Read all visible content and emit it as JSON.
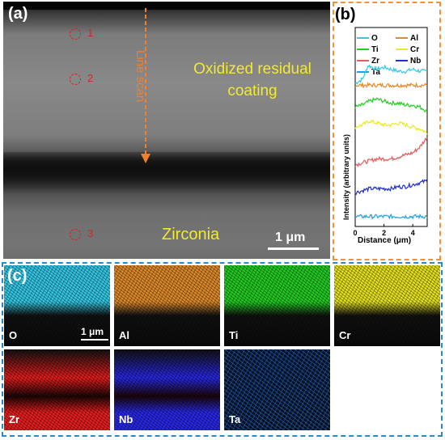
{
  "panel_a": {
    "label": "(a)",
    "line_scan_label": "Line scan",
    "coating_label": "Oxidized residual coating",
    "zirconia_label": "Zirconia",
    "scale_bar": "1 μm",
    "points": [
      "1",
      "2",
      "3"
    ]
  },
  "panel_b": {
    "label": "(b)",
    "legend": [
      {
        "name": "O",
        "color": "#33c8e6"
      },
      {
        "name": "Al",
        "color": "#e08a2a"
      },
      {
        "name": "Ti",
        "color": "#22cc22"
      },
      {
        "name": "Cr",
        "color": "#eaea1e"
      },
      {
        "name": "Zr",
        "color": "#e85a5a"
      },
      {
        "name": "Nb",
        "color": "#1e2ed0"
      },
      {
        "name": "Ta",
        "color": "#1ea0e0"
      }
    ]
  },
  "chart_data": {
    "type": "line",
    "xlabel": "Distance (μm)",
    "ylabel": "Intensity (arbitrary units)",
    "xlim": [
      0,
      5
    ],
    "xticks": [
      "0",
      "2",
      "4"
    ],
    "series": [
      {
        "name": "O",
        "x": [
          0,
          0.5,
          0.9,
          1.5,
          2.0,
          2.5,
          3.0,
          3.5,
          4.0,
          4.5,
          5.0
        ],
        "y": [
          0.72,
          0.74,
          0.81,
          0.79,
          0.8,
          0.79,
          0.78,
          0.78,
          0.79,
          0.78,
          0.78
        ]
      },
      {
        "name": "Al",
        "x": [
          0,
          0.5,
          1.0,
          1.5,
          2.0,
          2.5,
          3.0,
          3.5,
          4.0,
          4.5,
          5.0
        ],
        "y": [
          0.71,
          0.71,
          0.71,
          0.71,
          0.71,
          0.71,
          0.71,
          0.71,
          0.71,
          0.71,
          0.71
        ]
      },
      {
        "name": "Ti",
        "x": [
          0,
          0.5,
          1.0,
          1.5,
          2.0,
          2.5,
          3.0,
          3.5,
          4.0,
          4.5,
          5.0
        ],
        "y": [
          0.6,
          0.61,
          0.63,
          0.64,
          0.63,
          0.62,
          0.62,
          0.61,
          0.61,
          0.6,
          0.58
        ]
      },
      {
        "name": "Cr",
        "x": [
          0,
          0.5,
          1.0,
          1.5,
          2.0,
          2.5,
          3.0,
          3.5,
          4.0,
          4.5,
          5.0
        ],
        "y": [
          0.5,
          0.51,
          0.53,
          0.52,
          0.51,
          0.51,
          0.52,
          0.51,
          0.5,
          0.49,
          0.47
        ]
      },
      {
        "name": "Zr",
        "x": [
          0,
          0.5,
          1.0,
          1.5,
          2.0,
          2.5,
          3.0,
          3.5,
          4.0,
          4.5,
          5.0
        ],
        "y": [
          0.31,
          0.32,
          0.33,
          0.34,
          0.34,
          0.34,
          0.35,
          0.36,
          0.37,
          0.4,
          0.45
        ]
      },
      {
        "name": "Nb",
        "x": [
          0,
          0.5,
          1.0,
          1.5,
          2.0,
          2.5,
          3.0,
          3.5,
          4.0,
          4.5,
          5.0
        ],
        "y": [
          0.17,
          0.18,
          0.19,
          0.19,
          0.19,
          0.19,
          0.2,
          0.2,
          0.21,
          0.22,
          0.23
        ]
      },
      {
        "name": "Ta",
        "x": [
          0,
          0.5,
          1.0,
          1.5,
          2.0,
          2.5,
          3.0,
          3.5,
          4.0,
          4.5,
          5.0
        ],
        "y": [
          0.05,
          0.05,
          0.05,
          0.05,
          0.05,
          0.05,
          0.05,
          0.05,
          0.05,
          0.05,
          0.05
        ]
      }
    ]
  },
  "panel_c": {
    "label": "(c)",
    "scale_bar": "1 μm",
    "maps": [
      {
        "element": "O",
        "color": "#33c8e6"
      },
      {
        "element": "Al",
        "color": "#e08a2a"
      },
      {
        "element": "Ti",
        "color": "#22cc22"
      },
      {
        "element": "Cr",
        "color": "#e6e21e"
      },
      {
        "element": "Zr",
        "color": "#e81e1e"
      },
      {
        "element": "Nb",
        "color": "#2828e8"
      },
      {
        "element": "Ta",
        "color": "#2a78e6"
      }
    ]
  }
}
